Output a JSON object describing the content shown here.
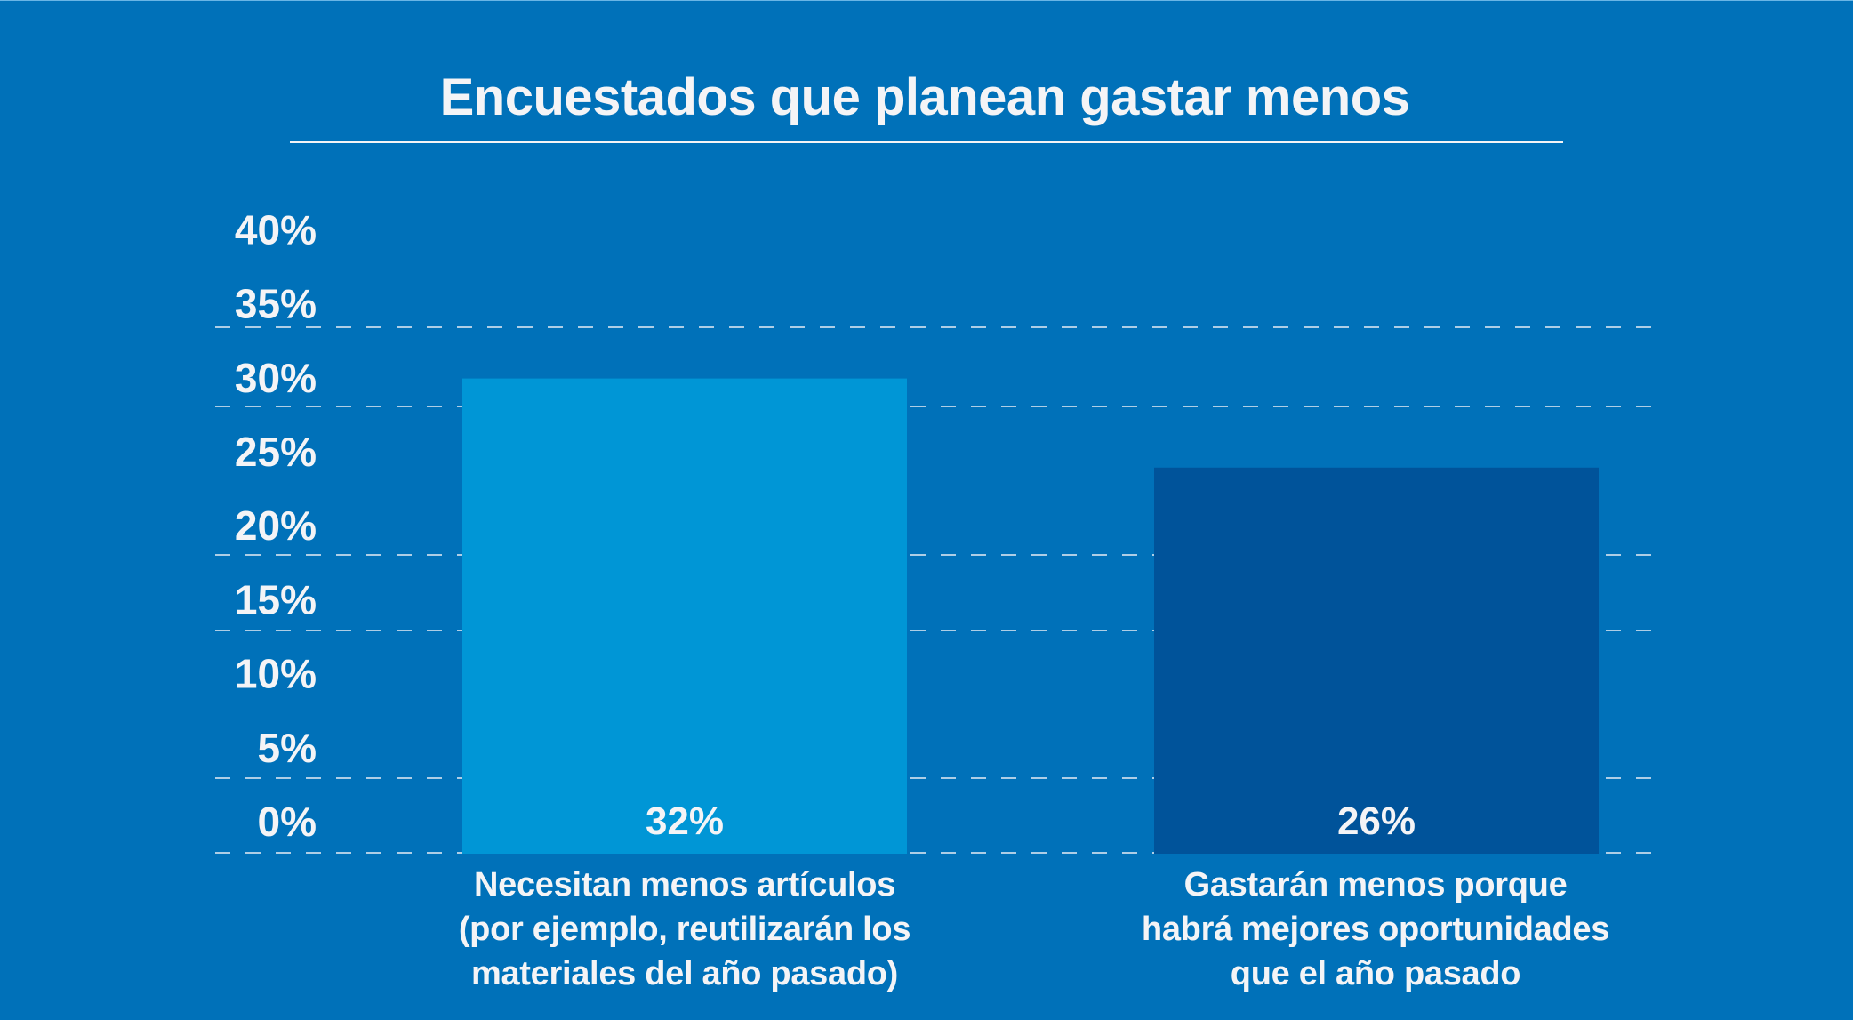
{
  "chart_data": {
    "type": "bar",
    "title": "Encuestados que planean gastar menos",
    "xlabel": "",
    "ylabel": "",
    "ylim": [
      0,
      40
    ],
    "yticks": [
      "0%",
      "5%",
      "10%",
      "15%",
      "20%",
      "25%",
      "30%",
      "35%",
      "40%"
    ],
    "grid": true,
    "categories": [
      {
        "lines": [
          "Necesitan menos artículos",
          "(por ejemplo, reutilizarán los",
          "materiales del año pasado)"
        ]
      },
      {
        "lines": [
          "Gastarán menos porque",
          "habrá mejores oportunidades",
          "que el año pasado"
        ]
      }
    ],
    "values": [
      32,
      26
    ],
    "value_labels": [
      "32%",
      "26%"
    ],
    "colors": [
      "#0096d6",
      "#00539a"
    ]
  },
  "colors": {
    "background": "#0071b9",
    "text": "#f4f4f6"
  }
}
